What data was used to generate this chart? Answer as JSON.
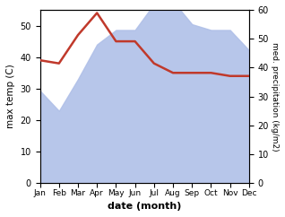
{
  "months": [
    "Jan",
    "Feb",
    "Mar",
    "Apr",
    "May",
    "Jun",
    "Jul",
    "Aug",
    "Sep",
    "Oct",
    "Nov",
    "Dec"
  ],
  "max_temp": [
    39,
    38,
    47,
    54,
    45,
    45,
    38,
    35,
    35,
    35,
    34,
    34
  ],
  "precipitation_kg": [
    32,
    25,
    36,
    48,
    53,
    53,
    62,
    63,
    55,
    53,
    53,
    46
  ],
  "temp_color": "#c0392b",
  "precip_color": "#b0c0e8",
  "left_ylabel": "max temp (C)",
  "right_ylabel": "med. precipitation (kg/m2)",
  "xlabel": "date (month)",
  "left_ylim": [
    0,
    55
  ],
  "right_ylim": [
    0,
    60
  ],
  "left_yticks": [
    0,
    10,
    20,
    30,
    40,
    50
  ],
  "right_yticks": [
    0,
    10,
    20,
    30,
    40,
    50,
    60
  ],
  "bg_color": "#ffffff",
  "figure_size": [
    3.18,
    2.42
  ],
  "dpi": 100
}
